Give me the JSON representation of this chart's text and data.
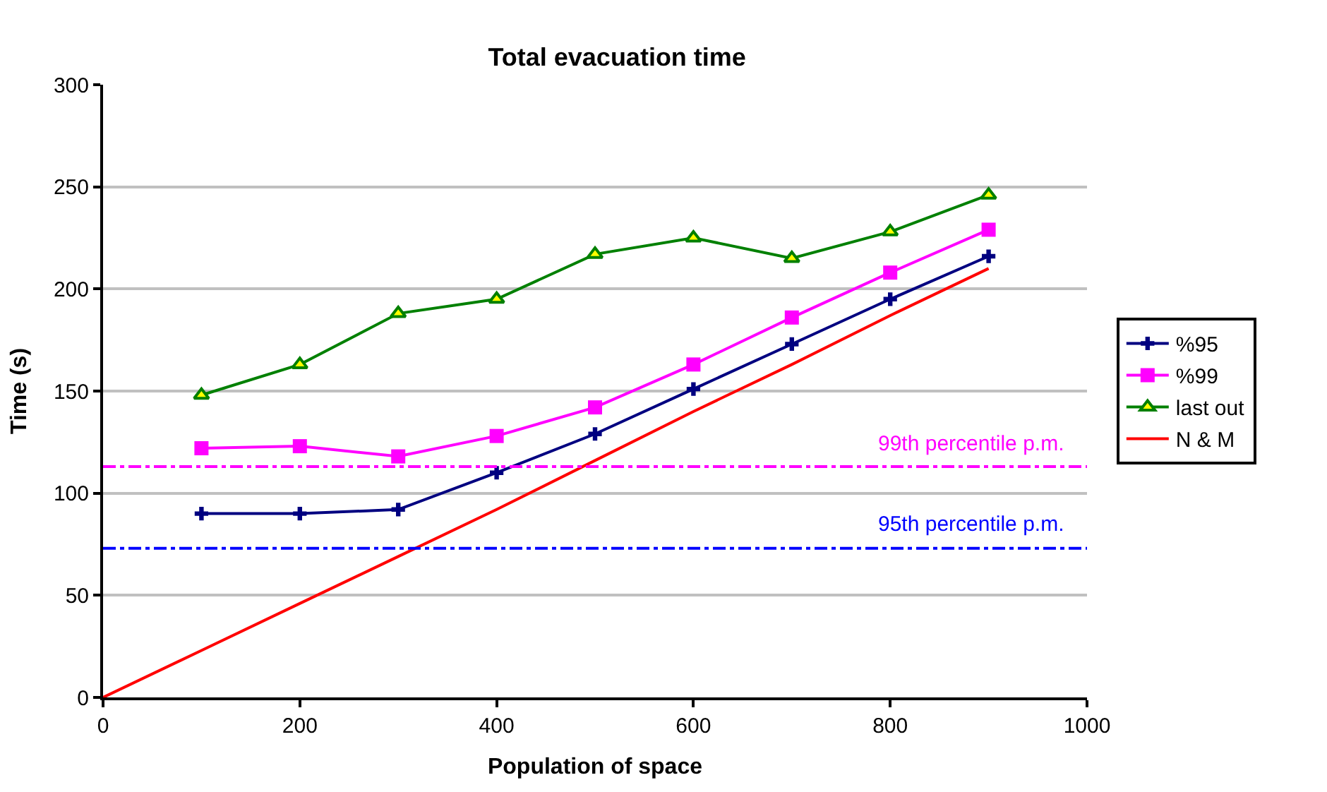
{
  "chart_data": {
    "type": "line",
    "title": "Total evacuation time",
    "xlabel": "Population of space",
    "ylabel": "Time (s)",
    "x": [
      100,
      200,
      300,
      400,
      500,
      600,
      700,
      800,
      900
    ],
    "series": [
      {
        "name": "%95",
        "color": "#000080",
        "marker": "cross",
        "values": [
          90,
          90,
          92,
          110,
          129,
          151,
          173,
          195,
          216
        ]
      },
      {
        "name": "%99",
        "color": "#ff00ff",
        "marker": "square",
        "values": [
          122,
          123,
          118,
          128,
          142,
          163,
          186,
          208,
          229
        ]
      },
      {
        "name": "last out",
        "color": "#008000",
        "marker": "triangle",
        "values": [
          148,
          163,
          188,
          195,
          217,
          225,
          215,
          228,
          246
        ]
      },
      {
        "name": "N & M",
        "color": "#ff0000",
        "marker": "none",
        "x": [
          0,
          100,
          200,
          300,
          400,
          500,
          600,
          700,
          800,
          900
        ],
        "values": [
          0,
          23,
          46,
          69,
          92,
          116,
          140,
          163,
          187,
          210
        ]
      }
    ],
    "ref_lines": [
      {
        "axis": "y",
        "value": 113,
        "label": "99th percentile p.m.",
        "color": "#ff00ff",
        "line_style": "dotted"
      },
      {
        "axis": "y",
        "value": 73,
        "label": "95th percentile p.m.",
        "color": "#0000ff",
        "line_style": "dotted"
      }
    ],
    "xlim": [
      0,
      1000
    ],
    "xticks": [
      0,
      200,
      400,
      600,
      800,
      1000
    ],
    "ylim": [
      0,
      300
    ],
    "yticks": [
      0,
      50,
      100,
      150,
      200,
      250,
      300
    ],
    "grid": "y",
    "legend": "right"
  }
}
